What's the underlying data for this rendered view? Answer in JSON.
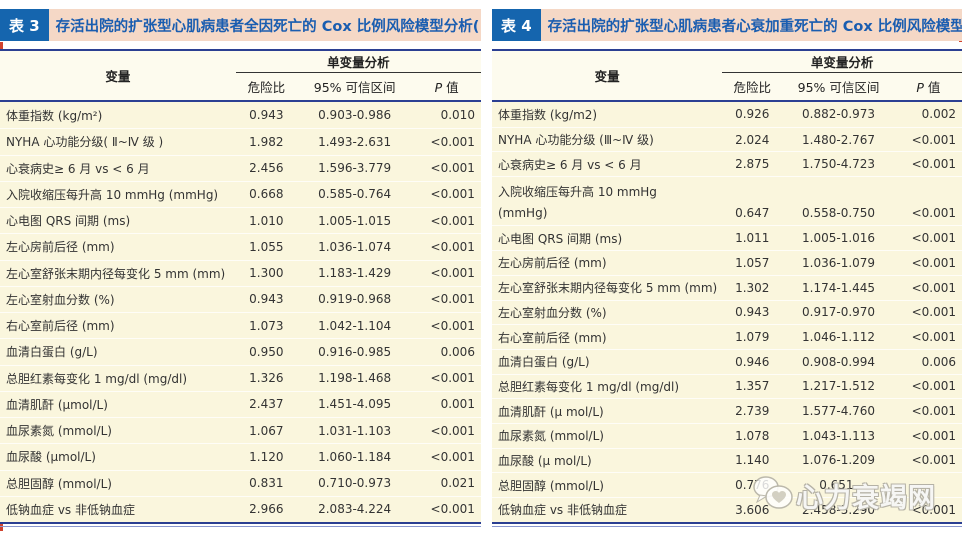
{
  "colors": {
    "navy_rule": "#2b3f92",
    "tag_blue": "#1565ae",
    "title_blue": "#1a5db0",
    "title_strip_pink": "#f5d8c6",
    "body_cream": "#faf6dd",
    "header_cream": "#fdfbee",
    "edge_red": "#d0422e"
  },
  "watermark": {
    "icon": "heart-speech-bubble-icon",
    "text": "心力衰竭网"
  },
  "tables": [
    {
      "tag": "表 3",
      "title": "存活出院的扩张型心肌病患者全因死亡的 Cox 比例风险模型分析(",
      "header": {
        "variable": "变量",
        "group": "单变量分析",
        "col_hr": "危险比",
        "col_ci": "95% 可信区间",
        "col_p_italic": "P",
        "col_p_rest": " 值"
      },
      "rows": [
        {
          "label": "体重指数 (kg/m²)",
          "hr": "0.943",
          "ci": "0.903-0.986",
          "p": "0.010"
        },
        {
          "label": "NYHA 心功能分级( Ⅱ~Ⅳ 级 )",
          "hr": "1.982",
          "ci": "1.493-2.631",
          "p": "<0.001"
        },
        {
          "label": "心衰病史≥ 6 月 vs < 6 月",
          "hr": "2.456",
          "ci": "1.596-3.779",
          "p": "<0.001"
        },
        {
          "label": "入院收缩压每升高 10 mmHg (mmHg)",
          "hr": "0.668",
          "ci": "0.585-0.764",
          "p": "<0.001"
        },
        {
          "label": "心电图 QRS 间期 (ms)",
          "hr": "1.010",
          "ci": "1.005-1.015",
          "p": "<0.001"
        },
        {
          "label": "左心房前后径 (mm)",
          "hr": "1.055",
          "ci": "1.036-1.074",
          "p": "<0.001"
        },
        {
          "label": "左心室舒张末期内径每变化 5 mm (mm)",
          "hr": "1.300",
          "ci": "1.183-1.429",
          "p": "<0.001"
        },
        {
          "label": "左心室射血分数 (%)",
          "hr": "0.943",
          "ci": "0.919-0.968",
          "p": "<0.001"
        },
        {
          "label": "右心室前后径 (mm)",
          "hr": "1.073",
          "ci": "1.042-1.104",
          "p": "<0.001"
        },
        {
          "label": "血清白蛋白 (g/L)",
          "hr": "0.950",
          "ci": "0.916-0.985",
          "p": "0.006"
        },
        {
          "label": "总胆红素每变化 1 mg/dl (mg/dl)",
          "hr": "1.326",
          "ci": "1.198-1.468",
          "p": "<0.001"
        },
        {
          "label": "血清肌酐 (μmol/L)",
          "hr": "2.437",
          "ci": "1.451-4.095",
          "p": "0.001"
        },
        {
          "label": "血尿素氮 (mmol/L)",
          "hr": "1.067",
          "ci": "1.031-1.103",
          "p": "<0.001"
        },
        {
          "label": "血尿酸 (μmol/L)",
          "hr": "1.120",
          "ci": "1.060-1.184",
          "p": "<0.001"
        },
        {
          "label": "总胆固醇 (mmol/L)",
          "hr": "0.831",
          "ci": "0.710-0.973",
          "p": "0.021"
        },
        {
          "label": "低钠血症 vs 非低钠血症",
          "hr": "2.966",
          "ci": "2.083-4.224",
          "p": "<0.001"
        }
      ]
    },
    {
      "tag": "表 4",
      "title": "存活出院的扩张型心肌病患者心衰加重死亡的 Cox 比例风险模型分析",
      "header": {
        "variable": "变量",
        "group": "单变量分析",
        "col_hr": "危险比",
        "col_ci": "95% 可信区间",
        "col_p_italic": "P",
        "col_p_rest": " 值"
      },
      "rows": [
        {
          "label": "体重指数 (kg/m2)",
          "hr": "0.926",
          "ci": "0.882-0.973",
          "p": "0.002"
        },
        {
          "label": "NYHA 心功能分级 (Ⅲ~Ⅳ 级)",
          "hr": "2.024",
          "ci": "1.480-2.767",
          "p": "<0.001"
        },
        {
          "label": "心衰病史≥ 6 月 vs < 6 月",
          "hr": "2.875",
          "ci": "1.750-4.723",
          "p": "<0.001"
        },
        {
          "label": "入院收缩压每升高 10 mmHg",
          "label2": " (mmHg)",
          "hr": "0.647",
          "ci": "0.558-0.750",
          "p": "<0.001"
        },
        {
          "label": "心电图 QRS 间期 (ms)",
          "hr": "1.011",
          "ci": "1.005-1.016",
          "p": "<0.001"
        },
        {
          "label": "左心房前后径 (mm)",
          "hr": "1.057",
          "ci": "1.036-1.079",
          "p": "<0.001"
        },
        {
          "label": "左心室舒张末期内径每变化 5 mm (mm)",
          "hr": "1.302",
          "ci": "1.174-1.445",
          "p": "<0.001"
        },
        {
          "label": "左心室射血分数 (%)",
          "hr": "0.943",
          "ci": "0.917-0.970",
          "p": "<0.001"
        },
        {
          "label": "右心室前后径 (mm)",
          "hr": "1.079",
          "ci": "1.046-1.112",
          "p": "<0.001"
        },
        {
          "label": "血清白蛋白 (g/L)",
          "hr": "0.946",
          "ci": "0.908-0.994",
          "p": "0.006"
        },
        {
          "label": "总胆红素每变化 1 mg/dl (mg/dl)",
          "hr": "1.357",
          "ci": "1.217-1.512",
          "p": "<0.001"
        },
        {
          "label": "血清肌酐 (μ mol/L)",
          "hr": "2.739",
          "ci": "1.577-4.760",
          "p": "<0.001"
        },
        {
          "label": "血尿素氮 (mmol/L)",
          "hr": "1.078",
          "ci": "1.043-1.113",
          "p": "<0.001"
        },
        {
          "label": "血尿酸 (μ mol/L)",
          "hr": "1.140",
          "ci": "1.076-1.209",
          "p": "<0.001"
        },
        {
          "label": "总胆固醇 (mmol/L)",
          "hr": "0.776",
          "ci": "0.651-",
          "p": ""
        },
        {
          "label": "低钠血症 vs 非低钠血症",
          "hr": "3.606",
          "ci": "2.458-5.290",
          "p": "<0.001"
        }
      ]
    }
  ]
}
